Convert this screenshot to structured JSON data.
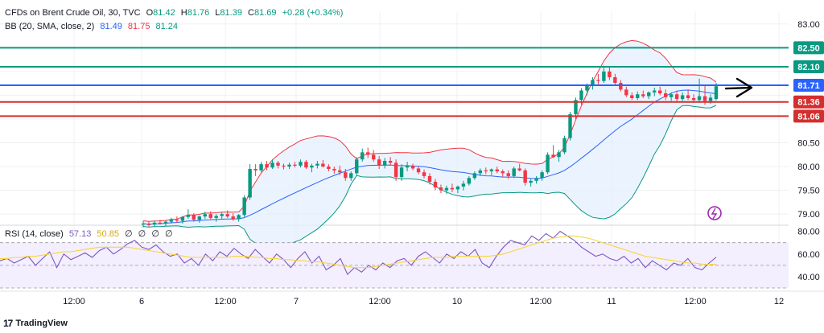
{
  "header": {
    "symbol": "CFDs on Brent Crude Oil, 30, TVC",
    "o_label": "O",
    "o": "81.42",
    "h_label": "H",
    "h": "81.76",
    "l_label": "L",
    "l": "81.39",
    "c_label": "C",
    "c": "81.69",
    "change": "+0.28 (+0.34%)",
    "bb_label": "BB (20, SMA, close, 2)",
    "bb_mid": "81.49",
    "bb_upper": "81.75",
    "bb_lower": "81.24",
    "rsi_label": "RSI (14, close)",
    "rsi_value": "57.13",
    "rsi_ma": "50.85",
    "rsi_na": [
      "∅",
      "∅",
      "∅",
      "∅"
    ]
  },
  "brand": {
    "logo": "17",
    "name": "TradingView"
  },
  "colors": {
    "up": "#089981",
    "down": "#f23645",
    "bb_mid": "#2962ff",
    "bb_upper": "#f23645",
    "bb_lower": "#089981",
    "bb_fill": "#e3effd",
    "rsi_line": "#7e57c2",
    "rsi_ma": "#f9d53a",
    "rsi_band": "#f3efff",
    "level_green": "#089981",
    "level_blue": "#2962ff",
    "level_red": "#d32f2f",
    "grid": "#eef0f3",
    "axis_text": "#131722",
    "annotation": "#000000",
    "tv_icon": "#9c27b0"
  },
  "chart_data": [
    {
      "type": "candlestick",
      "title": "CFDs on Brent Crude Oil, 30, TVC",
      "y_axis": {
        "ticks": [
          79.0,
          79.5,
          80.0,
          80.5,
          81.0,
          81.5,
          82.0,
          82.5,
          83.0
        ],
        "range": [
          78.8,
          83.25
        ],
        "side": "right"
      },
      "x_axis": {
        "ticks": [
          "12:00",
          "6",
          "12:00",
          "7",
          "12:00",
          "10",
          "12:00",
          "11",
          "12:00",
          "12"
        ]
      },
      "grid": true,
      "ohlc_sampled": [
        [
          78.78,
          78.85,
          78.72,
          78.8
        ],
        [
          78.8,
          78.84,
          78.74,
          78.77
        ],
        [
          78.78,
          78.86,
          78.73,
          78.82
        ],
        [
          78.82,
          78.88,
          78.78,
          78.8
        ],
        [
          78.8,
          78.87,
          78.74,
          78.84
        ],
        [
          78.84,
          78.92,
          78.8,
          78.88
        ],
        [
          78.88,
          78.95,
          78.82,
          78.86
        ],
        [
          78.86,
          78.96,
          78.8,
          78.94
        ],
        [
          78.94,
          79.1,
          78.9,
          78.98
        ],
        [
          78.98,
          79.02,
          78.84,
          78.88
        ],
        [
          78.88,
          78.97,
          78.82,
          78.95
        ],
        [
          78.95,
          79.05,
          78.9,
          79.0
        ],
        [
          79.0,
          79.06,
          78.88,
          78.92
        ],
        [
          78.92,
          79.0,
          78.84,
          78.96
        ],
        [
          78.96,
          79.04,
          78.9,
          79.0
        ],
        [
          79.0,
          79.08,
          78.92,
          78.95
        ],
        [
          78.95,
          79.02,
          78.86,
          78.9
        ],
        [
          78.9,
          79.0,
          78.84,
          78.98
        ],
        [
          78.98,
          79.4,
          78.94,
          79.35
        ],
        [
          79.35,
          80.05,
          79.3,
          79.95
        ],
        [
          79.95,
          80.05,
          79.8,
          79.92
        ],
        [
          79.92,
          80.1,
          79.88,
          80.05
        ],
        [
          80.05,
          80.12,
          79.92,
          79.98
        ],
        [
          79.98,
          80.15,
          79.95,
          80.08
        ],
        [
          80.08,
          80.12,
          79.96,
          80.02
        ],
        [
          80.02,
          80.06,
          79.94,
          80.0
        ],
        [
          80.0,
          80.08,
          79.95,
          80.04
        ],
        [
          80.04,
          80.1,
          79.98,
          80.02
        ],
        [
          80.02,
          80.15,
          79.98,
          80.1
        ],
        [
          80.1,
          80.14,
          79.95,
          79.98
        ],
        [
          79.98,
          80.06,
          79.88,
          80.02
        ],
        [
          80.02,
          80.12,
          79.96,
          80.06
        ],
        [
          80.06,
          80.14,
          79.98,
          80.0
        ],
        [
          80.0,
          80.05,
          79.9,
          79.95
        ],
        [
          79.95,
          80.0,
          79.85,
          79.92
        ],
        [
          79.92,
          80.02,
          79.82,
          79.88
        ],
        [
          79.88,
          79.95,
          79.7,
          79.76
        ],
        [
          79.76,
          79.9,
          79.7,
          79.86
        ],
        [
          79.86,
          80.2,
          79.8,
          80.15
        ],
        [
          80.15,
          80.38,
          80.1,
          80.3
        ],
        [
          80.3,
          80.4,
          80.18,
          80.25
        ],
        [
          80.25,
          80.35,
          80.1,
          80.15
        ],
        [
          80.15,
          80.22,
          79.95,
          80.02
        ],
        [
          80.02,
          80.18,
          79.96,
          80.12
        ],
        [
          80.12,
          80.2,
          80.02,
          80.08
        ],
        [
          80.08,
          80.15,
          79.7,
          79.78
        ],
        [
          79.78,
          80.05,
          79.7,
          79.98
        ],
        [
          79.98,
          80.1,
          79.9,
          80.02
        ],
        [
          80.02,
          80.06,
          79.92,
          79.96
        ],
        [
          79.96,
          80.0,
          79.84,
          79.88
        ],
        [
          79.88,
          79.94,
          79.75,
          79.8
        ],
        [
          79.8,
          79.86,
          79.62,
          79.68
        ],
        [
          79.68,
          79.74,
          79.5,
          79.56
        ],
        [
          79.56,
          79.62,
          79.44,
          79.5
        ],
        [
          79.5,
          79.6,
          79.42,
          79.55
        ],
        [
          79.55,
          79.64,
          79.46,
          79.52
        ],
        [
          79.52,
          79.6,
          79.44,
          79.58
        ],
        [
          79.58,
          79.7,
          79.5,
          79.64
        ],
        [
          79.64,
          79.8,
          79.6,
          79.76
        ],
        [
          79.76,
          79.9,
          79.72,
          79.86
        ],
        [
          79.86,
          79.96,
          79.8,
          79.92
        ],
        [
          79.92,
          79.98,
          79.84,
          79.9
        ],
        [
          79.9,
          79.96,
          79.82,
          79.94
        ],
        [
          79.94,
          80.0,
          79.86,
          79.9
        ],
        [
          79.9,
          79.94,
          79.78,
          79.86
        ],
        [
          79.86,
          79.92,
          79.74,
          79.8
        ],
        [
          79.8,
          80.0,
          79.76,
          79.96
        ],
        [
          79.96,
          80.06,
          79.9,
          79.92
        ],
        [
          79.92,
          79.96,
          79.6,
          79.66
        ],
        [
          79.66,
          79.74,
          79.58,
          79.7
        ],
        [
          79.7,
          79.8,
          79.64,
          79.76
        ],
        [
          79.76,
          79.92,
          79.7,
          79.88
        ],
        [
          79.88,
          80.3,
          79.84,
          80.25
        ],
        [
          80.25,
          80.45,
          80.18,
          80.2
        ],
        [
          80.2,
          80.35,
          80.1,
          80.3
        ],
        [
          80.3,
          80.65,
          80.26,
          80.6
        ],
        [
          80.6,
          81.15,
          80.55,
          81.1
        ],
        [
          81.1,
          81.45,
          81.0,
          81.4
        ],
        [
          81.4,
          81.65,
          81.3,
          81.6
        ],
        [
          81.6,
          81.75,
          81.5,
          81.7
        ],
        [
          81.7,
          81.88,
          81.62,
          81.82
        ],
        [
          81.82,
          81.95,
          81.7,
          81.8
        ],
        [
          81.8,
          82.12,
          81.76,
          82.0
        ],
        [
          82.0,
          82.1,
          81.82,
          81.88
        ],
        [
          81.88,
          81.95,
          81.7,
          81.76
        ],
        [
          81.76,
          81.82,
          81.58,
          81.62
        ],
        [
          81.62,
          81.68,
          81.46,
          81.5
        ],
        [
          81.5,
          81.56,
          81.4,
          81.44
        ],
        [
          81.44,
          81.58,
          81.4,
          81.52
        ],
        [
          81.52,
          81.6,
          81.44,
          81.48
        ],
        [
          81.48,
          81.58,
          81.42,
          81.56
        ],
        [
          81.56,
          81.66,
          81.48,
          81.6
        ],
        [
          81.6,
          81.68,
          81.5,
          81.54
        ],
        [
          81.54,
          81.62,
          81.4,
          81.46
        ],
        [
          81.46,
          81.56,
          81.38,
          81.52
        ],
        [
          81.52,
          81.6,
          81.36,
          81.42
        ],
        [
          81.42,
          81.56,
          81.38,
          81.5
        ],
        [
          81.5,
          81.62,
          81.4,
          81.44
        ],
        [
          81.44,
          81.52,
          81.34,
          81.4
        ],
        [
          81.4,
          81.85,
          81.36,
          81.48
        ],
        [
          81.48,
          81.7,
          81.3,
          81.38
        ],
        [
          81.38,
          81.52,
          81.32,
          81.45
        ],
        [
          81.42,
          81.76,
          81.39,
          81.69
        ]
      ],
      "bollinger_bands": {
        "period": 20,
        "stddev": 2
      },
      "horizontal_levels": [
        {
          "value": 82.5,
          "label": "82.50",
          "color": "green"
        },
        {
          "value": 82.1,
          "label": "82.10",
          "color": "green"
        },
        {
          "value": 81.71,
          "label": "81.71",
          "color": "blue"
        },
        {
          "value": 81.36,
          "label": "81.36",
          "color": "red"
        },
        {
          "value": 81.06,
          "label": "81.06",
          "color": "red"
        }
      ],
      "last_price_label": "81.71",
      "annotation": "arrow pointing right"
    },
    {
      "type": "line",
      "title": "RSI (14, close)",
      "y_axis": {
        "ticks": [
          40.0,
          60.0,
          80.0
        ],
        "range": [
          30,
          84
        ],
        "side": "right"
      },
      "band": [
        30,
        70
      ],
      "series": [
        {
          "values": [
            54,
            56,
            52,
            55,
            58,
            50,
            56,
            62,
            48,
            60,
            55,
            58,
            61,
            57,
            63,
            66,
            60,
            64,
            69,
            72,
            66,
            64,
            68,
            62,
            58,
            60,
            52,
            56,
            50,
            60,
            54,
            62,
            58,
            65,
            60,
            56,
            64,
            58,
            52,
            60,
            55,
            48,
            56,
            62,
            52,
            58,
            46,
            50,
            56,
            42,
            48,
            44,
            50,
            46,
            52,
            48,
            54,
            56,
            50,
            58,
            62,
            57,
            52,
            60,
            56,
            62,
            58,
            64,
            52,
            48,
            58,
            66,
            72,
            70,
            68,
            76,
            72,
            78,
            74,
            80,
            76,
            72,
            66,
            62,
            58,
            60,
            56,
            54,
            58,
            52,
            56,
            48,
            54,
            50,
            46,
            52,
            50,
            56,
            48,
            46,
            52,
            57.13
          ]
        },
        {
          "values": [
            56,
            56,
            57,
            57,
            58,
            58,
            59,
            60,
            61,
            62,
            62,
            63,
            64,
            65,
            66,
            66,
            66,
            66,
            66,
            65,
            64,
            63,
            62,
            61,
            60,
            59,
            58,
            57,
            57,
            57,
            57,
            57,
            57,
            58,
            58,
            58,
            57,
            57,
            56,
            56,
            55,
            55,
            54,
            54,
            53,
            53,
            52,
            51,
            50,
            49,
            48,
            48,
            48,
            49,
            50,
            51,
            52,
            53,
            54,
            55,
            56,
            57,
            57,
            57,
            58,
            58,
            58,
            58,
            58,
            58,
            59,
            60,
            62,
            64,
            66,
            68,
            70,
            72,
            74,
            75,
            76,
            76,
            75,
            74,
            72,
            70,
            68,
            66,
            64,
            62,
            60,
            58,
            57,
            56,
            55,
            54,
            53,
            52,
            52,
            51,
            51,
            50.85
          ]
        }
      ]
    }
  ]
}
